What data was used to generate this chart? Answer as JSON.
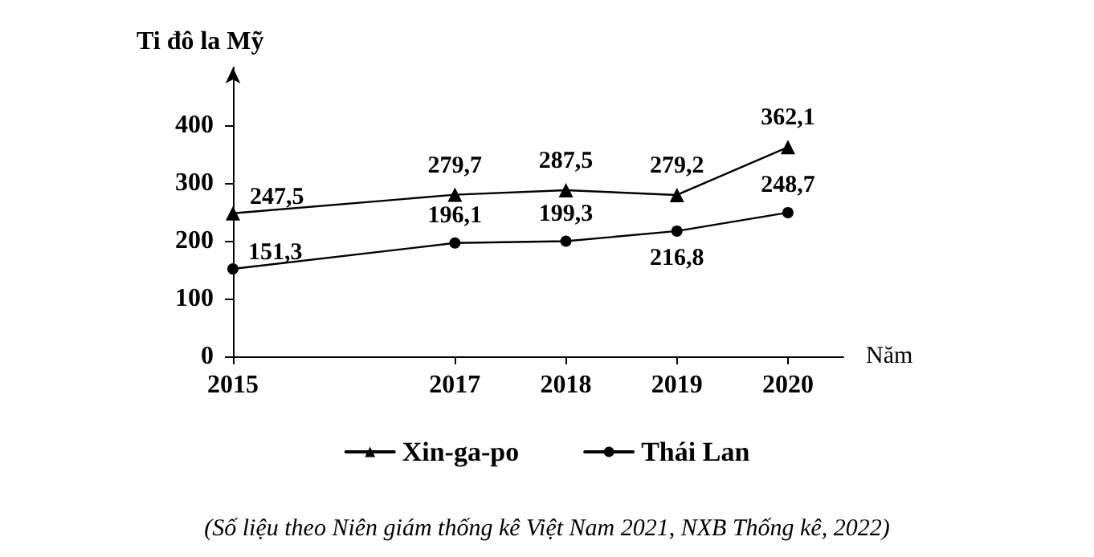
{
  "chart_data": {
    "type": "line",
    "ylabel": "Ti đô la Mỹ",
    "xlabel": "Năm",
    "x": [
      2015,
      2017,
      2018,
      2019,
      2020
    ],
    "xlim": [
      2015,
      2020.5
    ],
    "xticks": [
      2015,
      2017,
      2018,
      2019,
      2020
    ],
    "ylim": [
      0,
      500
    ],
    "yticks": [
      0,
      100,
      200,
      300,
      400
    ],
    "series": [
      {
        "name": "Xin-ga-po",
        "color": "#000000",
        "marker": "triangle",
        "values": [
          247.5,
          279.7,
          287.5,
          279.2,
          362.1
        ],
        "value_labels": [
          "247,5",
          "279,7",
          "287,5",
          "279,2",
          "362,1"
        ]
      },
      {
        "name": "Thái Lan",
        "color": "#000000",
        "marker": "circle",
        "values": [
          151.3,
          196.1,
          199.3,
          216.8,
          248.7
        ],
        "value_labels": [
          "151,3",
          "196,1",
          "199,3",
          "216,8",
          "248,7"
        ]
      }
    ],
    "grid": false,
    "legend": "bottom",
    "line_style": "solid",
    "annotations": [
      "(Số liệu theo Niên giám thống kê Việt Nam 2021, NXB Thống kê, 2022)"
    ]
  }
}
